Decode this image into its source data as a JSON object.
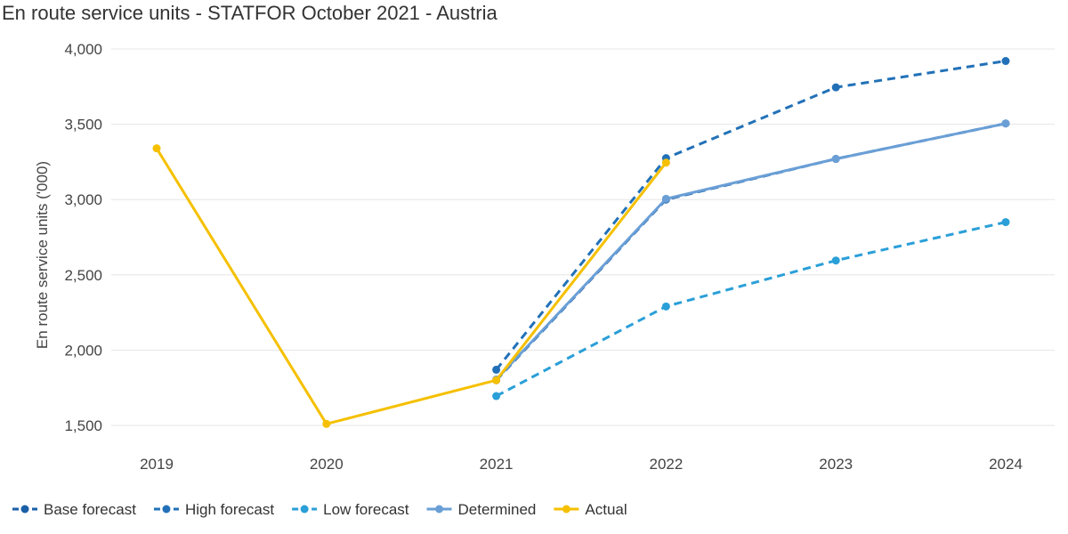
{
  "chart_data": {
    "type": "line",
    "title": "En route service units - STATFOR October 2021 - Austria",
    "xlabel": "",
    "ylabel": "En route service units ('000)",
    "categories": [
      "2019",
      "2020",
      "2021",
      "2022",
      "2023",
      "2024"
    ],
    "ylim": [
      1500,
      4000
    ],
    "yticks": [
      1500,
      2000,
      2500,
      3000,
      3500,
      4000
    ],
    "ytick_labels": [
      "1,500",
      "2,000",
      "2,500",
      "3,000",
      "3,500",
      "4,000"
    ],
    "grid": true,
    "legend_position": "bottom-left",
    "series": [
      {
        "name": "Base forecast",
        "color": "#1a5fa8",
        "style": "dashed",
        "values": [
          null,
          null,
          1800,
          3000,
          3270,
          3505
        ]
      },
      {
        "name": "High forecast",
        "color": "#2271b8",
        "style": "dashed",
        "values": [
          null,
          null,
          1870,
          3275,
          3745,
          3920
        ]
      },
      {
        "name": "Low forecast",
        "color": "#2a9fd8",
        "style": "dashed",
        "values": [
          null,
          null,
          1695,
          2290,
          2595,
          2850
        ]
      },
      {
        "name": "Determined",
        "color": "#6a9fd6",
        "style": "solid",
        "values": [
          null,
          null,
          1805,
          3005,
          3270,
          3505
        ]
      },
      {
        "name": "Actual",
        "color": "#f5c000",
        "style": "solid",
        "values": [
          3340,
          1510,
          1800,
          3245,
          null,
          null
        ]
      }
    ]
  }
}
